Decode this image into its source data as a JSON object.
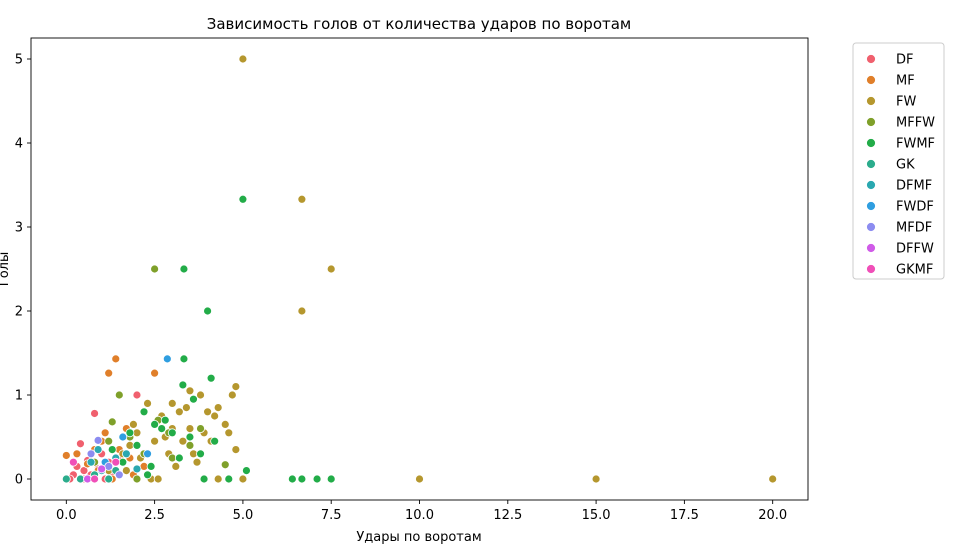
{
  "chart_data": {
    "type": "scatter",
    "title": "Зависимость голов от количества ударов по воротам",
    "xlabel": "Удары по воротам",
    "ylabel": "Голы",
    "xlim": [
      -1.0,
      21.0
    ],
    "ylim": [
      -0.25,
      5.25
    ],
    "xticks": [
      "0.0",
      "2.5",
      "5.0",
      "7.5",
      "10.0",
      "12.5",
      "15.0",
      "17.5",
      "20.0"
    ],
    "yticks": [
      "0",
      "1",
      "2",
      "3",
      "4",
      "5"
    ],
    "grid": false,
    "legend_position": "outside-right",
    "series": [
      {
        "name": "DF",
        "color": "#f0606e",
        "points": [
          [
            0.2,
            0.05
          ],
          [
            0.3,
            0.15
          ],
          [
            0.4,
            0.42
          ],
          [
            0.5,
            0.1
          ],
          [
            0.6,
            0.22
          ],
          [
            0.7,
            0.05
          ],
          [
            0.8,
            0.78
          ],
          [
            0.9,
            0.12
          ],
          [
            1.0,
            0.3
          ],
          [
            1.1,
            0.0
          ],
          [
            1.2,
            0.2
          ],
          [
            1.3,
            0.08
          ],
          [
            1.5,
            0.25
          ],
          [
            2.0,
            1.0
          ],
          [
            0.1,
            0.0
          ],
          [
            0.5,
            0.0
          ]
        ]
      },
      {
        "name": "MF",
        "color": "#e07f2a",
        "points": [
          [
            0.0,
            0.28
          ],
          [
            0.3,
            0.3
          ],
          [
            0.6,
            0.18
          ],
          [
            0.8,
            0.35
          ],
          [
            1.0,
            0.45
          ],
          [
            1.1,
            0.55
          ],
          [
            1.2,
            1.26
          ],
          [
            1.4,
            1.43
          ],
          [
            1.5,
            0.35
          ],
          [
            1.7,
            0.6
          ],
          [
            1.8,
            0.25
          ],
          [
            2.0,
            0.4
          ],
          [
            2.2,
            0.15
          ],
          [
            2.5,
            1.26
          ],
          [
            0.9,
            0.1
          ],
          [
            1.3,
            0.0
          ],
          [
            1.9,
            0.05
          ]
        ]
      },
      {
        "name": "FW",
        "color": "#b5972e",
        "points": [
          [
            5.0,
            5.0
          ],
          [
            6.67,
            3.33
          ],
          [
            7.5,
            2.5
          ],
          [
            6.67,
            2.0
          ],
          [
            10.0,
            0.0
          ],
          [
            15.0,
            0.0
          ],
          [
            20.0,
            0.0
          ],
          [
            4.8,
            1.1
          ],
          [
            4.7,
            1.0
          ],
          [
            4.3,
            0.85
          ],
          [
            4.2,
            0.75
          ],
          [
            3.8,
            1.0
          ],
          [
            3.5,
            1.05
          ],
          [
            3.4,
            0.85
          ],
          [
            3.2,
            0.8
          ],
          [
            3.0,
            0.6
          ],
          [
            2.8,
            0.5
          ],
          [
            2.5,
            0.45
          ],
          [
            2.3,
            0.9
          ],
          [
            2.0,
            0.55
          ],
          [
            1.8,
            0.4
          ],
          [
            1.6,
            0.3
          ],
          [
            1.4,
            0.2
          ],
          [
            1.2,
            0.1
          ],
          [
            3.6,
            0.3
          ],
          [
            3.9,
            0.55
          ],
          [
            4.1,
            0.45
          ],
          [
            4.5,
            0.65
          ],
          [
            4.8,
            0.35
          ],
          [
            5.0,
            0.0
          ],
          [
            4.3,
            0.0
          ],
          [
            2.7,
            0.75
          ],
          [
            3.1,
            0.15
          ],
          [
            2.1,
            0.25
          ],
          [
            1.9,
            0.65
          ],
          [
            2.9,
            0.3
          ],
          [
            3.3,
            0.45
          ],
          [
            3.7,
            0.2
          ],
          [
            2.4,
            0.0
          ],
          [
            1.7,
            0.1
          ],
          [
            4.6,
            0.55
          ],
          [
            3.5,
            0.6
          ],
          [
            3.0,
            0.9
          ],
          [
            2.6,
            0.0
          ],
          [
            4.0,
            0.8
          ]
        ]
      },
      {
        "name": "MFFW",
        "color": "#7fa02a",
        "points": [
          [
            2.5,
            2.5
          ],
          [
            1.5,
            1.0
          ],
          [
            1.3,
            0.68
          ],
          [
            1.8,
            0.5
          ],
          [
            2.2,
            0.3
          ],
          [
            2.6,
            0.7
          ],
          [
            3.0,
            0.25
          ],
          [
            3.5,
            0.4
          ],
          [
            4.5,
            0.17
          ],
          [
            0.8,
            0.2
          ],
          [
            1.2,
            0.45
          ],
          [
            2.0,
            0.0
          ],
          [
            2.9,
            0.55
          ],
          [
            3.8,
            0.6
          ]
        ]
      },
      {
        "name": "FWMF",
        "color": "#22ac48",
        "points": [
          [
            5.0,
            3.33
          ],
          [
            3.33,
            2.5
          ],
          [
            4.0,
            2.0
          ],
          [
            3.33,
            1.43
          ],
          [
            4.1,
            1.2
          ],
          [
            3.3,
            1.12
          ],
          [
            3.6,
            0.95
          ],
          [
            2.2,
            0.8
          ],
          [
            2.5,
            0.65
          ],
          [
            2.8,
            0.7
          ],
          [
            3.0,
            0.55
          ],
          [
            3.5,
            0.5
          ],
          [
            3.8,
            0.3
          ],
          [
            4.2,
            0.45
          ],
          [
            4.6,
            0.0
          ],
          [
            5.1,
            0.1
          ],
          [
            6.4,
            0.0
          ],
          [
            6.67,
            0.0
          ],
          [
            7.1,
            0.0
          ],
          [
            7.5,
            0.0
          ],
          [
            2.0,
            0.4
          ],
          [
            1.6,
            0.2
          ],
          [
            1.3,
            0.35
          ],
          [
            2.4,
            0.15
          ],
          [
            3.2,
            0.25
          ],
          [
            2.7,
            0.6
          ],
          [
            3.9,
            0.0
          ],
          [
            1.0,
            0.1
          ],
          [
            1.8,
            0.55
          ],
          [
            2.3,
            0.05
          ]
        ]
      },
      {
        "name": "GK",
        "color": "#2bac8c",
        "points": [
          [
            0.0,
            0.0
          ],
          [
            0.4,
            0.0
          ],
          [
            0.8,
            0.05
          ],
          [
            1.2,
            0.0
          ],
          [
            1.4,
            0.1
          ],
          [
            0.6,
            0.0
          ]
        ]
      },
      {
        "name": "DFMF",
        "color": "#2aa8b0",
        "points": [
          [
            0.7,
            0.2
          ],
          [
            1.0,
            0.1
          ],
          [
            1.4,
            0.25
          ],
          [
            1.7,
            0.3
          ],
          [
            2.0,
            0.12
          ],
          [
            0.9,
            0.35
          ]
        ]
      },
      {
        "name": "FWDF",
        "color": "#2f9ee0",
        "points": [
          [
            2.86,
            1.43
          ],
          [
            1.6,
            0.5
          ],
          [
            1.1,
            0.2
          ],
          [
            2.3,
            0.3
          ]
        ]
      },
      {
        "name": "MFDF",
        "color": "#8c8cf0",
        "points": [
          [
            0.9,
            0.46
          ],
          [
            1.2,
            0.15
          ],
          [
            1.5,
            0.05
          ],
          [
            0.7,
            0.3
          ]
        ]
      },
      {
        "name": "DFFW",
        "color": "#d05be8",
        "points": [
          [
            0.6,
            0.0
          ],
          [
            1.0,
            0.12
          ]
        ]
      },
      {
        "name": "GKMF",
        "color": "#f04fb8",
        "points": [
          [
            0.2,
            0.2
          ],
          [
            0.8,
            0.0
          ],
          [
            1.4,
            0.2
          ]
        ]
      }
    ]
  }
}
